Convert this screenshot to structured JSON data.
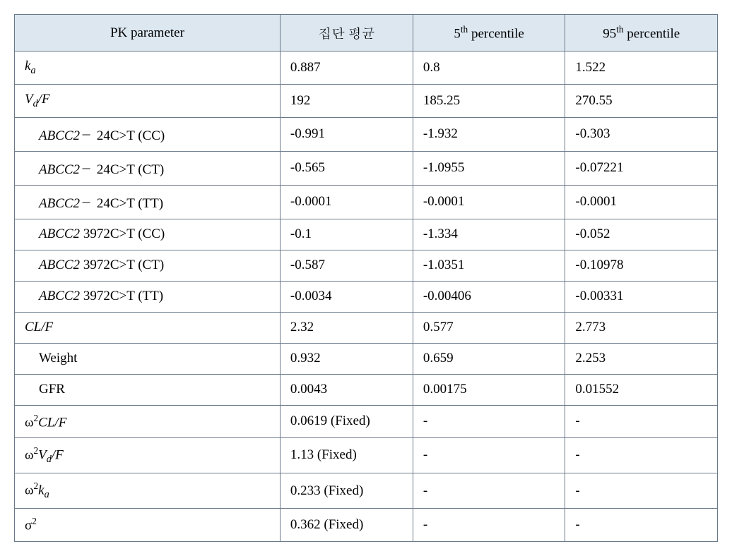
{
  "table": {
    "background_header": "#dce7f0",
    "border_color": "#6b7a8a",
    "headers": {
      "col1": "PK parameter",
      "col2": "집단 평균",
      "col3_pre": "5",
      "col3_sup": "th",
      "col3_post": " percentile",
      "col4_pre": "95",
      "col4_sup": "th",
      "col4_post": " percentile"
    },
    "rows": [
      {
        "type": "ka",
        "mean": "0.887",
        "p5": "0.8",
        "p95": "1.522"
      },
      {
        "type": "vdf",
        "mean": "192",
        "p5": "185.25",
        "p95": "270.55"
      },
      {
        "type": "abcc2_24_cc",
        "label_gene": "ABCC2",
        "label_post": "－ 24C>T (CC)",
        "mean": "-0.991",
        "p5": "-1.932",
        "p95": "-0.303"
      },
      {
        "type": "abcc2_24_ct",
        "label_gene": "ABCC2",
        "label_post": "－ 24C>T (CT)",
        "mean": "-0.565",
        "p5": "-1.0955",
        "p95": "-0.07221"
      },
      {
        "type": "abcc2_24_tt",
        "label_gene": "ABCC2",
        "label_post": "－ 24C>T (TT)",
        "mean": "-0.0001",
        "p5": "-0.0001",
        "p95": "-0.0001"
      },
      {
        "type": "abcc2_3972_cc",
        "label_gene": "ABCC2",
        "label_post": " 3972C>T (CC)",
        "mean": "-0.1",
        "p5": "-1.334",
        "p95": "-0.052"
      },
      {
        "type": "abcc2_3972_ct",
        "label_gene": "ABCC2",
        "label_post": " 3972C>T (CT)",
        "mean": "-0.587",
        "p5": "-1.0351",
        "p95": "-0.10978"
      },
      {
        "type": "abcc2_3972_tt",
        "label_gene": "ABCC2",
        "label_post": " 3972C>T (TT)",
        "mean": "-0.0034",
        "p5": "-0.00406",
        "p95": "-0.00331"
      },
      {
        "type": "clf",
        "mean": "2.32",
        "p5": "0.577",
        "p95": "2.773"
      },
      {
        "type": "weight",
        "label": "Weight",
        "mean": "0.932",
        "p5": "0.659",
        "p95": "2.253"
      },
      {
        "type": "gfr",
        "label": "GFR",
        "mean": "0.0043",
        "p5": "0.00175",
        "p95": "0.01552"
      },
      {
        "type": "omega_clf",
        "mean": "0.0619 (Fixed)",
        "p5": "-",
        "p95": "-"
      },
      {
        "type": "omega_vdf",
        "mean": "1.13 (Fixed)",
        "p5": "-",
        "p95": "-"
      },
      {
        "type": "omega_ka",
        "mean": "0.233 (Fixed)",
        "p5": "-",
        "p95": "-"
      },
      {
        "type": "sigma2",
        "mean": "0.362 (Fixed)",
        "p5": "-",
        "p95": "-"
      }
    ]
  }
}
